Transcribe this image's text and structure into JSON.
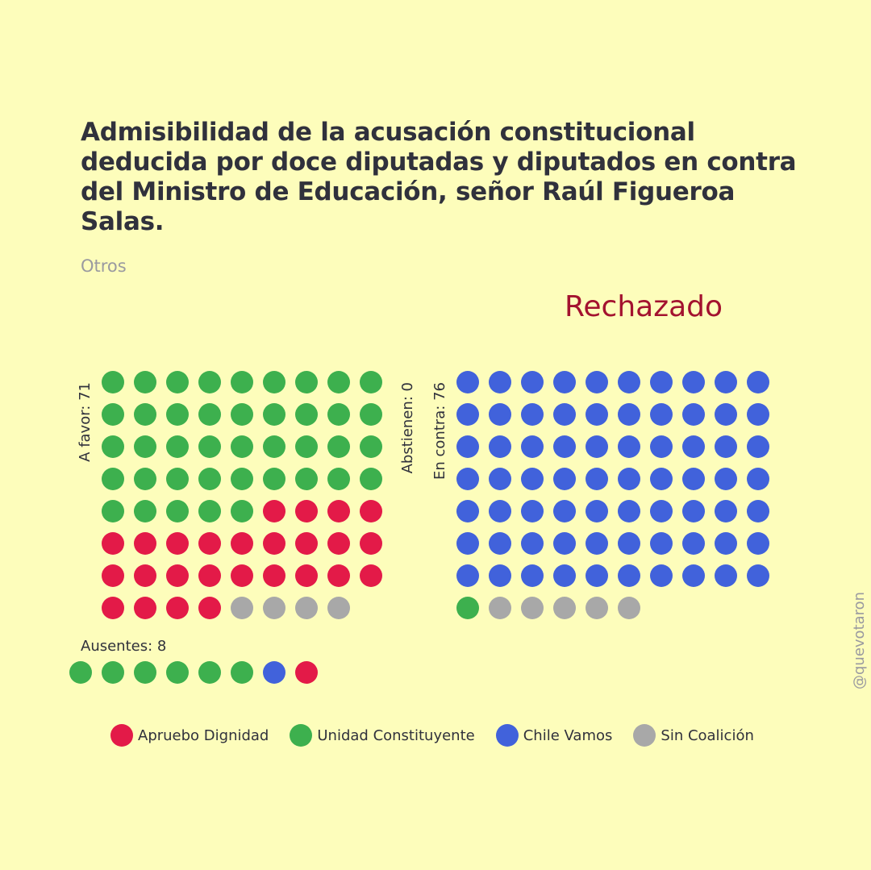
{
  "colors": {
    "background": "#FDFDBB",
    "Apruebo Dignidad": "#E31A48",
    "Unidad Constituyente": "#3DB04E",
    "Chile Vamos": "#4162DB",
    "Sin Coalición": "#A8A8A8",
    "result": "#A3122F"
  },
  "header": {
    "title": "Admisibilidad de la acusación constitucional deducida por doce diputadas y diputados en contra del Ministro de Educación, señor Raúl Figueroa Salas.",
    "subtitle": "Otros",
    "result": "Rechazado"
  },
  "handle": "@quevotaron",
  "chart_data": {
    "type": "waffle",
    "groups": [
      {
        "label": "A favor: 71",
        "count": 71,
        "columns": 9,
        "composition": [
          {
            "coalition": "Unidad Constituyente",
            "count": 41
          },
          {
            "coalition": "Apruebo Dignidad",
            "count": 26
          },
          {
            "coalition": "Sin Coalición",
            "count": 4
          }
        ]
      },
      {
        "label": "Abstienen: 0",
        "count": 0,
        "columns": 0,
        "composition": []
      },
      {
        "label": "En contra: 76",
        "count": 76,
        "columns": 10,
        "composition": [
          {
            "coalition": "Chile Vamos",
            "count": 70
          },
          {
            "coalition": "Unidad Constituyente",
            "count": 1
          },
          {
            "coalition": "Sin Coalición",
            "count": 5
          }
        ]
      }
    ],
    "absent": {
      "label": "Ausentes: 8",
      "count": 8,
      "composition": [
        {
          "coalition": "Unidad Constituyente",
          "count": 6
        },
        {
          "coalition": "Chile Vamos",
          "count": 1
        },
        {
          "coalition": "Apruebo Dignidad",
          "count": 1
        }
      ]
    },
    "legend": [
      "Apruebo Dignidad",
      "Unidad Constituyente",
      "Chile Vamos",
      "Sin Coalición"
    ]
  }
}
